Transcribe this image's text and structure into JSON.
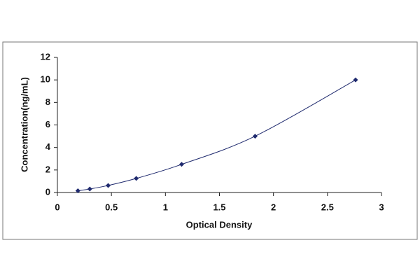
{
  "chart_data": {
    "type": "scatter",
    "x_label": "Optical Density",
    "y_label": "Concentration(ng/mL)",
    "x": [
      0.19,
      0.3,
      0.47,
      0.73,
      1.15,
      1.83,
      2.76
    ],
    "values": [
      0.156,
      0.312,
      0.625,
      1.25,
      2.5,
      5,
      10
    ],
    "color": "#1f2a6e",
    "line": true,
    "xlim": [
      0,
      3
    ],
    "xticks": [
      0,
      0.5,
      1,
      1.5,
      2,
      2.5,
      3
    ],
    "ylim": [
      0,
      12
    ],
    "yticks": [
      0,
      2,
      4,
      6,
      8,
      10,
      12
    ]
  }
}
